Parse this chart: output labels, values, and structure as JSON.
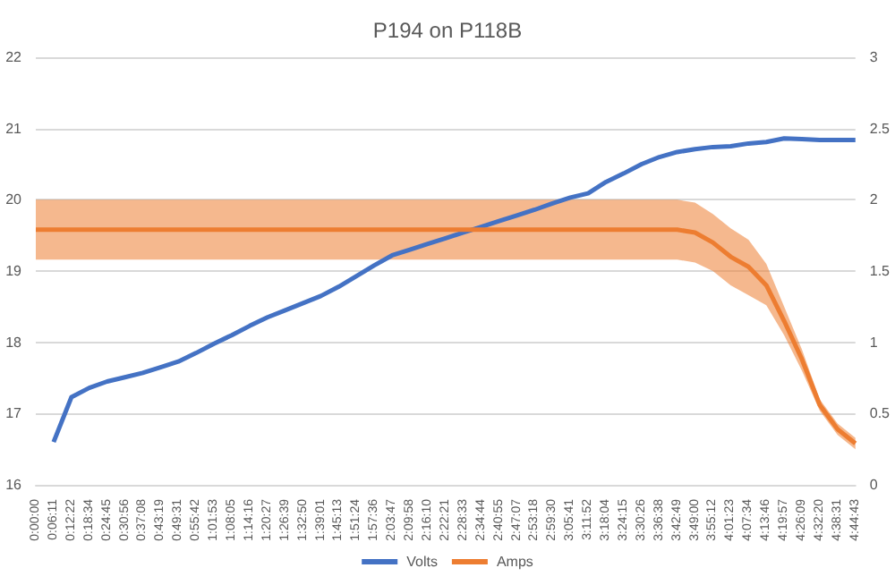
{
  "chart_data": {
    "type": "line",
    "title": "P194 on P118B",
    "categories": [
      "0:00:00",
      "0:06:11",
      "0:12:22",
      "0:18:34",
      "0:24:45",
      "0:30:56",
      "0:37:08",
      "0:43:19",
      "0:49:31",
      "0:55:42",
      "1:01:53",
      "1:08:05",
      "1:14:16",
      "1:20:27",
      "1:26:39",
      "1:32:50",
      "1:39:01",
      "1:45:13",
      "1:51:24",
      "1:57:36",
      "2:03:47",
      "2:09:58",
      "2:16:10",
      "2:22:21",
      "2:28:33",
      "2:34:44",
      "2:40:55",
      "2:47:07",
      "2:53:18",
      "2:59:30",
      "3:05:41",
      "3:11:52",
      "3:18:04",
      "3:24:15",
      "3:30:26",
      "3:36:38",
      "3:42:49",
      "3:49:00",
      "3:55:12",
      "4:01:23",
      "4:07:34",
      "4:13:46",
      "4:19:57",
      "4:26:09",
      "4:32:20",
      "4:38:31",
      "4:44:43"
    ],
    "series": [
      {
        "name": "Volts",
        "color": "#4472c4",
        "values": [
          null,
          16.6,
          17.23,
          17.36,
          17.45,
          17.51,
          17.57,
          17.65,
          17.73,
          17.85,
          17.98,
          18.1,
          18.23,
          18.35,
          18.45,
          18.55,
          18.65,
          18.78,
          18.93,
          19.08,
          19.22,
          19.3,
          19.38,
          19.46,
          19.54,
          19.62,
          19.7,
          19.78,
          19.86,
          19.95,
          20.03,
          20.09,
          20.25,
          20.37,
          20.5,
          20.6,
          20.67,
          20.71,
          20.74,
          20.75,
          20.79,
          20.81,
          20.86,
          20.85,
          20.84,
          20.84,
          20.84
        ]
      },
      {
        "name": "Amps",
        "color": "#ed7d31",
        "axis": "y2",
        "values": [
          1.79,
          1.79,
          1.79,
          1.79,
          1.79,
          1.79,
          1.79,
          1.79,
          1.79,
          1.79,
          1.79,
          1.79,
          1.79,
          1.79,
          1.79,
          1.79,
          1.79,
          1.79,
          1.79,
          1.79,
          1.79,
          1.79,
          1.79,
          1.79,
          1.79,
          1.79,
          1.79,
          1.79,
          1.79,
          1.79,
          1.79,
          1.79,
          1.79,
          1.79,
          1.79,
          1.79,
          1.79,
          1.77,
          1.7,
          1.6,
          1.53,
          1.4,
          1.15,
          0.88,
          0.56,
          0.39,
          0.29
        ],
        "lower": [
          1.58,
          1.58,
          1.58,
          1.58,
          1.58,
          1.58,
          1.58,
          1.58,
          1.58,
          1.58,
          1.58,
          1.58,
          1.58,
          1.58,
          1.58,
          1.58,
          1.58,
          1.58,
          1.58,
          1.58,
          1.58,
          1.58,
          1.58,
          1.58,
          1.58,
          1.58,
          1.58,
          1.58,
          1.58,
          1.58,
          1.58,
          1.58,
          1.58,
          1.58,
          1.58,
          1.58,
          1.58,
          1.56,
          1.5,
          1.4,
          1.33,
          1.26,
          1.05,
          0.8,
          0.52,
          0.35,
          0.25
        ],
        "upper": [
          2.0,
          2.0,
          2.0,
          2.0,
          2.0,
          2.0,
          2.0,
          2.0,
          2.0,
          2.0,
          2.0,
          2.0,
          2.0,
          2.0,
          2.0,
          2.0,
          2.0,
          2.0,
          2.0,
          2.0,
          2.0,
          2.0,
          2.0,
          2.0,
          2.0,
          2.0,
          2.0,
          2.0,
          2.0,
          2.0,
          2.0,
          2.0,
          2.0,
          2.0,
          2.0,
          2.0,
          2.0,
          1.98,
          1.9,
          1.8,
          1.72,
          1.55,
          1.25,
          0.95,
          0.6,
          0.43,
          0.33
        ]
      }
    ],
    "ylim": [
      16,
      22
    ],
    "yticks": [
      16,
      17,
      18,
      19,
      20,
      21,
      22
    ],
    "y2lim": [
      0,
      3
    ],
    "y2ticks": [
      0,
      0.5,
      1,
      1.5,
      2,
      2.5,
      3
    ],
    "grid": "y",
    "legend": "bottom",
    "marker": "none",
    "line_style": "solid"
  }
}
